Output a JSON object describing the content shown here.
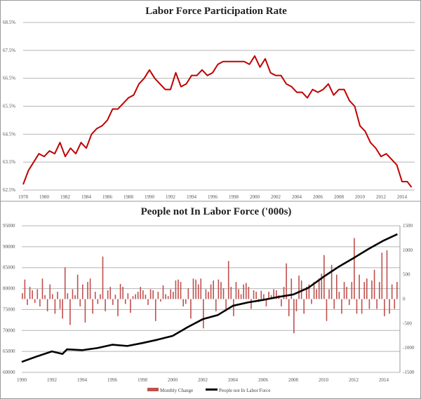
{
  "chart_data": [
    {
      "type": "line",
      "title": "Labor Force Participation Rate",
      "xlabel": "",
      "ylabel": "",
      "xlim": [
        1978,
        2015
      ],
      "ylim": [
        62.5,
        68.5
      ],
      "grid": true,
      "color": "#c00000",
      "x_ticks": [
        "1978",
        "1980",
        "1982",
        "1984",
        "1986",
        "1988",
        "1990",
        "1992",
        "1994",
        "1996",
        "1998",
        "2000",
        "2002",
        "2004",
        "2006",
        "2008",
        "2010",
        "2012",
        "2014"
      ],
      "y_ticks": [
        "62.5%",
        "63.5%",
        "64.5%",
        "65.5%",
        "66.5%",
        "67.5%",
        "68.5%"
      ],
      "series": [
        {
          "x": [
            1978,
            1978.5,
            1979,
            1979.5,
            1980,
            1980.5,
            1981,
            1981.5,
            1982,
            1982.5,
            1983,
            1983.5,
            1984,
            1984.5,
            1985,
            1985.5,
            1986,
            1986.5,
            1987,
            1987.5,
            1988,
            1988.5,
            1989,
            1989.5,
            1990,
            1990.5,
            1991,
            1991.5,
            1992,
            1992.5,
            1993,
            1993.5,
            1994,
            1994.5,
            1995,
            1995.5,
            1996,
            1996.5,
            1997,
            1997.5,
            1998,
            1998.5,
            1999,
            1999.5,
            2000,
            2000.5,
            2001,
            2001.5,
            2002,
            2002.5,
            2003,
            2003.5,
            2004,
            2004.5,
            2005,
            2005.5,
            2006,
            2006.5,
            2007,
            2007.5,
            2008,
            2008.5,
            2009,
            2009.5,
            2010,
            2010.5,
            2011,
            2011.5,
            2012,
            2012.5,
            2013,
            2013.5,
            2014,
            2014.5,
            2014.9
          ],
          "y": [
            62.7,
            63.2,
            63.5,
            63.8,
            63.7,
            63.9,
            63.8,
            64.2,
            63.7,
            64.0,
            63.8,
            64.2,
            64.0,
            64.5,
            64.7,
            64.8,
            65.0,
            65.4,
            65.4,
            65.6,
            65.8,
            65.9,
            66.3,
            66.5,
            66.8,
            66.5,
            66.3,
            66.1,
            66.1,
            66.7,
            66.2,
            66.3,
            66.6,
            66.6,
            66.8,
            66.6,
            66.7,
            67.0,
            67.1,
            67.1,
            67.1,
            67.1,
            67.1,
            67.0,
            67.3,
            66.9,
            67.2,
            66.7,
            66.6,
            66.6,
            66.3,
            66.2,
            66.0,
            66.0,
            65.8,
            66.1,
            66.0,
            66.1,
            66.3,
            65.9,
            66.1,
            66.1,
            65.7,
            65.5,
            64.8,
            64.6,
            64.2,
            64.0,
            63.7,
            63.8,
            63.6,
            63.4,
            62.8,
            62.8,
            62.6
          ]
        }
      ]
    },
    {
      "type": "bar+line",
      "title": "People not In Labor Force ('000s)",
      "xlabel": "",
      "xlim": [
        1990,
        2015
      ],
      "ylim_left": [
        60000,
        95000
      ],
      "ylim_right": [
        -1500,
        1500
      ],
      "grid": true,
      "legend_position": "bottom",
      "x_ticks": [
        "1990",
        "1992",
        "1994",
        "1996",
        "1998",
        "2000",
        "2002",
        "2004",
        "2006",
        "2008",
        "2010",
        "2012",
        "2014"
      ],
      "y_ticks_left": [
        "60000",
        "65000",
        "70000",
        "75000",
        "80000",
        "85000",
        "90000",
        "95000"
      ],
      "y_ticks_right": [
        "-1500",
        "-1000",
        "-500",
        "0",
        "500",
        "1000",
        "1500"
      ],
      "series": [
        {
          "name": "Monthly Change",
          "type": "bar",
          "axis": "right",
          "color": "#c0504d",
          "x_start": 1990,
          "x_step_years": 0.1667,
          "values": [
            120,
            400,
            -120,
            250,
            180,
            -80,
            200,
            -150,
            420,
            80,
            -250,
            300,
            100,
            -300,
            150,
            -200,
            -400,
            650,
            120,
            -530,
            200,
            80,
            500,
            -150,
            300,
            -480,
            350,
            420,
            -300,
            150,
            -100,
            100,
            870,
            -250,
            180,
            250,
            -120,
            90,
            -350,
            310,
            250,
            -100,
            120,
            -280,
            60,
            100,
            150,
            250,
            180,
            90,
            -120,
            200,
            180,
            -450,
            150,
            -50,
            280,
            100,
            60,
            200,
            150,
            380,
            400,
            350,
            -150,
            -100,
            220,
            -400,
            420,
            400,
            300,
            420,
            -600,
            200,
            150,
            300,
            380,
            -250,
            400,
            350,
            220,
            -250,
            780,
            250,
            -350,
            350,
            200,
            100,
            300,
            330,
            250,
            -200,
            180,
            150,
            -60,
            170,
            100,
            -150,
            150,
            80,
            200,
            180,
            80,
            -150,
            250,
            730,
            -350,
            420,
            -700,
            -250,
            480,
            380,
            -300,
            250,
            300,
            -100,
            350,
            200,
            420,
            520,
            900,
            -450,
            200,
            700,
            -200,
            500,
            150,
            -300,
            350,
            250,
            -120,
            350,
            1250,
            -300,
            500,
            -300,
            350,
            420,
            -200,
            380,
            600,
            -200,
            350,
            950,
            -350,
            1000,
            -300,
            300,
            -200,
            350
          ]
        },
        {
          "name": "People not In Labor Force",
          "type": "line",
          "axis": "left",
          "color": "#000000",
          "x": [
            1990,
            1991,
            1992,
            1992.7,
            1993,
            1994,
            1995,
            1996,
            1997,
            1998,
            1999,
            2000,
            2001,
            2002,
            2003,
            2004,
            2005,
            2006,
            2007,
            2008,
            2009,
            2010,
            2011,
            2012,
            2013,
            2014,
            2014.9
          ],
          "y": [
            62500,
            63800,
            65000,
            64400,
            65500,
            65300,
            65800,
            66600,
            66300,
            67000,
            67800,
            68700,
            70800,
            72700,
            73700,
            75900,
            76700,
            77300,
            78000,
            78600,
            80200,
            82800,
            85200,
            87300,
            89500,
            91500,
            93000
          ]
        }
      ]
    }
  ]
}
